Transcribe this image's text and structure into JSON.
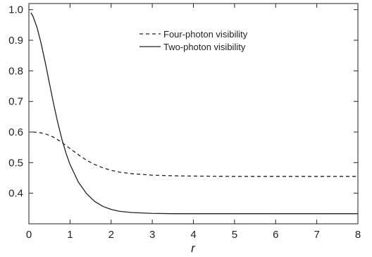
{
  "chart_data": {
    "type": "line",
    "xlabel": "r",
    "ylabel": "",
    "xlim": [
      0,
      8
    ],
    "ylim": [
      0.3,
      1.02
    ],
    "x_ticks": [
      0,
      1,
      2,
      3,
      4,
      5,
      6,
      7,
      8
    ],
    "y_ticks": [
      0.4,
      0.5,
      0.6,
      0.7,
      0.8,
      0.9,
      1.0
    ],
    "x_tick_labels": [
      "0",
      "1",
      "2",
      "3",
      "4",
      "5",
      "6",
      "7",
      "8"
    ],
    "y_tick_labels": [
      "0.4",
      "0.5",
      "0.6",
      "0.7",
      "0.8",
      "0.9",
      "1.0"
    ],
    "grid": false,
    "legend_position": "top-right",
    "series": [
      {
        "name": "Four-photon visibility",
        "line_style": "dashed",
        "color": "#222222",
        "x": [
          0.1,
          0.2,
          0.3,
          0.4,
          0.5,
          0.6,
          0.7,
          0.8,
          0.9,
          1.0,
          1.2,
          1.4,
          1.6,
          1.8,
          2.0,
          2.2,
          2.5,
          3.0,
          3.5,
          4.0,
          5.0,
          6.0,
          7.0,
          8.0
        ],
        "y": [
          0.6,
          0.599,
          0.597,
          0.594,
          0.589,
          0.583,
          0.575,
          0.566,
          0.556,
          0.546,
          0.526,
          0.508,
          0.494,
          0.483,
          0.475,
          0.469,
          0.464,
          0.459,
          0.457,
          0.456,
          0.455,
          0.455,
          0.455,
          0.455
        ]
      },
      {
        "name": "Two-photon visibility",
        "line_style": "solid",
        "color": "#222222",
        "x": [
          0.05,
          0.1,
          0.2,
          0.3,
          0.4,
          0.5,
          0.6,
          0.7,
          0.8,
          0.9,
          1.0,
          1.2,
          1.4,
          1.6,
          1.8,
          2.0,
          2.2,
          2.5,
          3.0,
          3.5,
          4.0,
          5.0,
          6.0,
          7.0,
          8.0
        ],
        "y": [
          0.99,
          0.978,
          0.941,
          0.888,
          0.826,
          0.759,
          0.693,
          0.632,
          0.578,
          0.532,
          0.494,
          0.437,
          0.399,
          0.373,
          0.357,
          0.347,
          0.341,
          0.337,
          0.334,
          0.333,
          0.333,
          0.333,
          0.333,
          0.333,
          0.333
        ]
      }
    ]
  }
}
